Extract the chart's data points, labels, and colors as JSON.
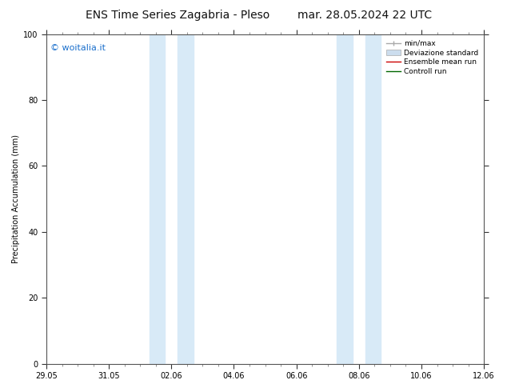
{
  "title_left": "ENS Time Series Zagabria - Pleso",
  "title_right": "mar. 28.05.2024 22 UTC",
  "ylabel": "Precipitation Accumulation (mm)",
  "ylim": [
    0,
    100
  ],
  "yticks": [
    0,
    20,
    40,
    60,
    80,
    100
  ],
  "xtick_labels": [
    "29.05",
    "31.05",
    "02.06",
    "04.06",
    "06.06",
    "08.06",
    "10.06",
    "12.06"
  ],
  "xtick_positions": [
    0,
    2,
    4,
    6,
    8,
    10,
    12,
    14
  ],
  "xlim": [
    0,
    14
  ],
  "shaded_bands": [
    {
      "x_start": 3.3,
      "x_end": 3.8,
      "color": "#d8eaf7"
    },
    {
      "x_start": 4.2,
      "x_end": 4.7,
      "color": "#d8eaf7"
    },
    {
      "x_start": 9.3,
      "x_end": 9.8,
      "color": "#d8eaf7"
    },
    {
      "x_start": 10.2,
      "x_end": 10.7,
      "color": "#d8eaf7"
    }
  ],
  "watermark": "© woitalia.it",
  "watermark_color": "#1a6fcc",
  "legend_items": [
    {
      "label": "min/max",
      "color": "#aaaaaa",
      "lw": 1.0,
      "type": "minmax"
    },
    {
      "label": "Deviazione standard",
      "color": "#ccddee",
      "lw": 5,
      "type": "band"
    },
    {
      "label": "Ensemble mean run",
      "color": "#cc0000",
      "lw": 1.0,
      "type": "line"
    },
    {
      "label": "Controll run",
      "color": "#006600",
      "lw": 1.0,
      "type": "line"
    }
  ],
  "background_color": "#ffffff",
  "title_fontsize": 10,
  "label_fontsize": 7,
  "tick_fontsize": 7,
  "legend_fontsize": 6.5,
  "fig_width": 6.34,
  "fig_height": 4.9,
  "dpi": 100
}
